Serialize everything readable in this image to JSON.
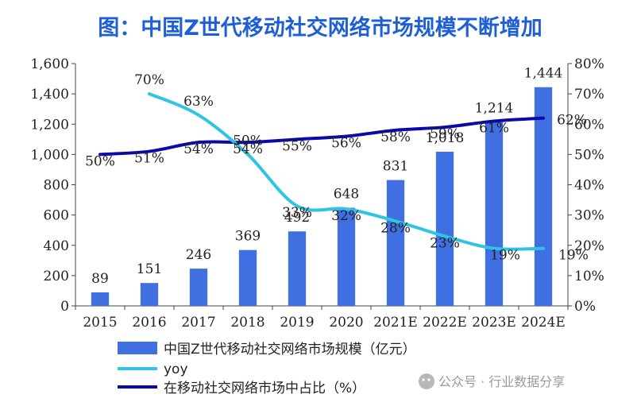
{
  "chart_data": {
    "type": "bar",
    "title": "图：中国Z世代移动社交网络市场规模不断增加",
    "categories": [
      "2015",
      "2016",
      "2017",
      "2018",
      "2019",
      "2020",
      "2021E",
      "2022E",
      "2023E",
      "2024E"
    ],
    "y_left": {
      "range": [
        0,
        1600
      ],
      "ticks": [
        "0",
        "200",
        "400",
        "600",
        "800",
        "1,000",
        "1,200",
        "1,400",
        "1,600"
      ]
    },
    "y_right": {
      "range": [
        0,
        80
      ],
      "ticks": [
        "0%",
        "10%",
        "20%",
        "30%",
        "40%",
        "50%",
        "60%",
        "70%",
        "80%"
      ]
    },
    "series": [
      {
        "name": "中国Z世代移动社交网络市场规模（亿元）",
        "type": "bar",
        "axis": "left",
        "color": "#3f6fe0",
        "values": [
          89,
          151,
          246,
          369,
          492,
          648,
          831,
          1018,
          1214,
          1444
        ],
        "labels": [
          "89",
          "151",
          "246",
          "369",
          "492",
          "648",
          "831",
          "1,018",
          "1,214",
          "1,444"
        ]
      },
      {
        "name": "yoy",
        "type": "line",
        "axis": "right",
        "color": "#2fc4e4",
        "values": [
          null,
          70,
          63,
          50,
          33,
          32,
          28,
          23,
          19,
          19
        ],
        "labels": [
          "",
          "70%",
          "63%",
          "50%",
          "33%",
          "32%",
          "28%",
          "23%",
          "19%",
          "19%"
        ]
      },
      {
        "name": "在移动社交网络市场中占比（%）",
        "type": "line",
        "axis": "right",
        "color": "#0a0aa8",
        "values": [
          50,
          51,
          54,
          54,
          55,
          56,
          58,
          59,
          61,
          62
        ],
        "labels": [
          "50%",
          "51%",
          "54%",
          "54%",
          "55%",
          "56%",
          "58%",
          "59%",
          "61%",
          "62%"
        ]
      }
    ],
    "grid": false,
    "legend_position": "bottom-left"
  },
  "watermark": "公众号 · 行业数据分享"
}
